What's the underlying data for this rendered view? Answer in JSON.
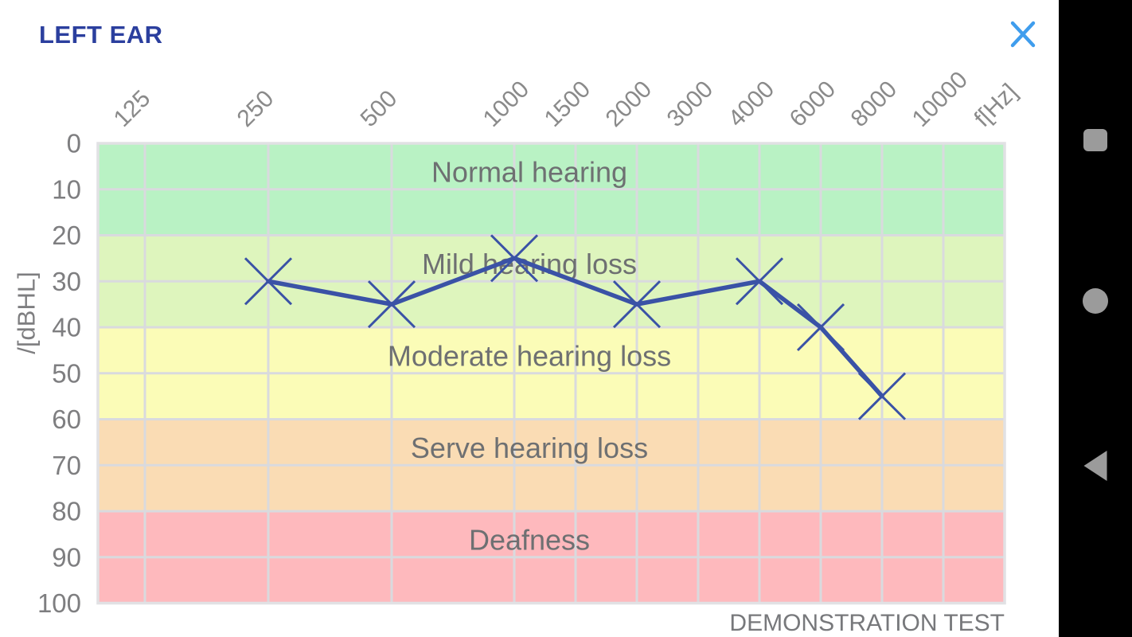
{
  "header": {
    "title": "LEFT EAR"
  },
  "footer": {
    "note": "DEMONSTRATION TEST"
  },
  "colors": {
    "title_text": "#2b3f9e",
    "close_icon": "#3f9ded",
    "navbar_bg": "#000000",
    "nav_icon": "#9b9b9b",
    "grid_line": "#d9dade",
    "plot_border": "#e1e1e4",
    "axis_text": "#8a8a8a",
    "tick_text": "#7e7e80",
    "band_label_text": "#6e7072",
    "series_line": "#3a52a6",
    "footer_text": "#77787b"
  },
  "chart_data": {
    "type": "line",
    "title": "LEFT EAR audiogram",
    "x_labels": [
      "125",
      "250",
      "500",
      "1000",
      "1500",
      "2000",
      "3000",
      "4000",
      "6000",
      "8000",
      "10000"
    ],
    "x_unit_label": "f[Hz]",
    "ylabel": "/[dBHL]",
    "ylim": [
      0,
      100
    ],
    "y_ticks": [
      0,
      10,
      20,
      30,
      40,
      50,
      60,
      70,
      80,
      90,
      100
    ],
    "grid": true,
    "legend": "none",
    "bands": [
      {
        "label": "Normal hearing",
        "from": 0,
        "to": 20,
        "color": "#b9f2c4"
      },
      {
        "label": "Mild hearing loss",
        "from": 20,
        "to": 40,
        "color": "#def5bd"
      },
      {
        "label": "Moderate hearing loss",
        "from": 40,
        "to": 60,
        "color": "#fbfcb7"
      },
      {
        "label": "Serve hearing loss",
        "from": 60,
        "to": 80,
        "color": "#fadcb4"
      },
      {
        "label": "Deafness",
        "from": 80,
        "to": 100,
        "color": "#feb9bd"
      }
    ],
    "series": [
      {
        "name": "left-ear-thresholds",
        "marker": "x",
        "points": [
          {
            "f": "250",
            "db": 30
          },
          {
            "f": "500",
            "db": 35
          },
          {
            "f": "1000",
            "db": 25
          },
          {
            "f": "2000",
            "db": 35
          },
          {
            "f": "4000",
            "db": 30
          },
          {
            "f": "6000",
            "db": 40
          },
          {
            "f": "8000",
            "db": 55
          }
        ]
      }
    ]
  },
  "nav": {
    "recents_icon": "recents-square-icon",
    "home_icon": "home-circle-icon",
    "back_icon": "back-triangle-icon"
  }
}
